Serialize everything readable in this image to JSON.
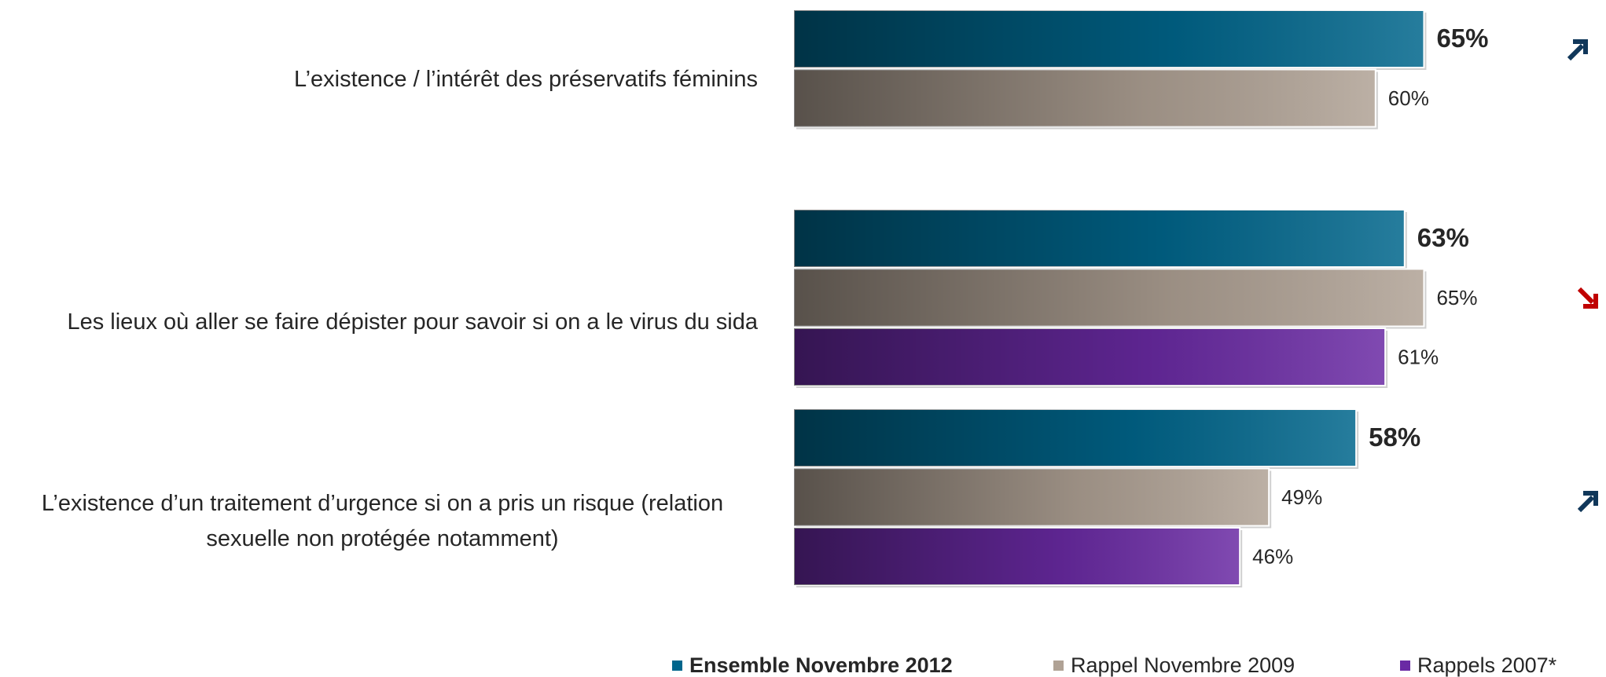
{
  "chart_data": {
    "type": "bar",
    "orientation": "horizontal",
    "categories": [
      "L’existence / l’intérêt des préservatifs féminins",
      "Les lieux où aller se faire dépister pour savoir si on a le virus du sida",
      "L’existence d’un traitement d’urgence si on a pris un risque (relation sexuelle non protégée notamment)"
    ],
    "series": [
      {
        "name": "Ensemble Novembre 2012",
        "color": "#00668c",
        "values": [
          65,
          63,
          58
        ],
        "value_labels": [
          "65%",
          "63%",
          "58%"
        ]
      },
      {
        "name": "Rappel Novembre 2009",
        "color": "#b0a295",
        "values": [
          60,
          65,
          49
        ],
        "value_labels": [
          "60%",
          "65%",
          "49%"
        ]
      },
      {
        "name": "Rappels 2007*",
        "color": "#6a2aa4",
        "values": [
          null,
          61,
          46
        ],
        "value_labels": [
          null,
          "61%",
          "46%"
        ]
      }
    ]
  }
}
